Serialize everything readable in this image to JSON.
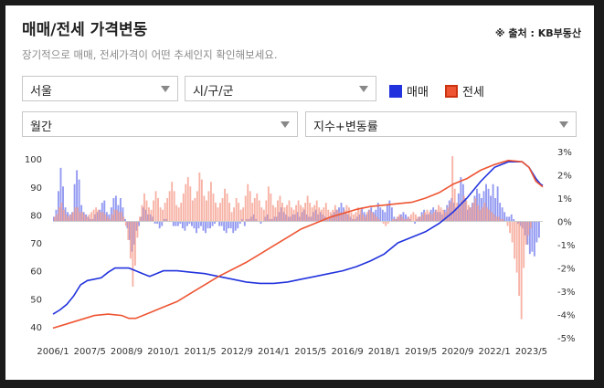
{
  "header": {
    "title": "매매/전세 가격변동",
    "source": "※ 출처 : KB부동산",
    "subtitle": "장기적으로 매매, 전세가격이 어떤 추세인지 확인해보세요."
  },
  "filters": {
    "region": "서울",
    "district": "시/구/군",
    "period": "월간",
    "metric": "지수+변동률"
  },
  "legend": {
    "sale": "매매",
    "jeonse": "전세"
  },
  "colors": {
    "sale": "#2233dd",
    "jeonse": "#ee5533",
    "sale_bar": "#8088ee",
    "jeonse_bar": "#f5a090"
  },
  "chart_data": {
    "type": "line",
    "x_ticks": [
      "2006/1",
      "2007/5",
      "2008/9",
      "2010/1",
      "2011/5",
      "2012/9",
      "2014/1",
      "2015/5",
      "2016/9",
      "2018/1",
      "2019/5",
      "2020/9",
      "2022/1",
      "2023/5"
    ],
    "y_left": {
      "ticks": [
        "100",
        "90",
        "80",
        "70",
        "60",
        "50",
        "40"
      ],
      "range": [
        38,
        102
      ]
    },
    "y_right": {
      "ticks": [
        "3%",
        "2%",
        "1%",
        "0%",
        "-1%",
        "-2%",
        "-3%",
        "-4%",
        "-5%"
      ],
      "range": [
        -5,
        3
      ]
    },
    "start_year": 2006,
    "start_month": 1,
    "series": [
      {
        "name": "매매",
        "axis": "left",
        "kind": "line",
        "points": [
          [
            0,
            44.5
          ],
          [
            3,
            46
          ],
          [
            6,
            48
          ],
          [
            9,
            51
          ],
          [
            12,
            55
          ],
          [
            15,
            56.5
          ],
          [
            18,
            57
          ],
          [
            21,
            57.5
          ],
          [
            24,
            59.5
          ],
          [
            27,
            61
          ],
          [
            30,
            61
          ],
          [
            33,
            61
          ],
          [
            36,
            60
          ],
          [
            39,
            59
          ],
          [
            42,
            58
          ],
          [
            45,
            59
          ],
          [
            48,
            60
          ],
          [
            54,
            60
          ],
          [
            60,
            59.5
          ],
          [
            66,
            59
          ],
          [
            72,
            58
          ],
          [
            78,
            57
          ],
          [
            84,
            56
          ],
          [
            90,
            55.5
          ],
          [
            96,
            55.5
          ],
          [
            102,
            56
          ],
          [
            108,
            57
          ],
          [
            114,
            58
          ],
          [
            120,
            59
          ],
          [
            126,
            60
          ],
          [
            132,
            61.5
          ],
          [
            138,
            63.5
          ],
          [
            144,
            66
          ],
          [
            150,
            70
          ],
          [
            156,
            72
          ],
          [
            162,
            74
          ],
          [
            168,
            77
          ],
          [
            174,
            81
          ],
          [
            180,
            86
          ],
          [
            186,
            92
          ],
          [
            192,
            97
          ],
          [
            198,
            99
          ],
          [
            204,
            99
          ],
          [
            207,
            97
          ],
          [
            210,
            93
          ],
          [
            212,
            91
          ],
          [
            213,
            90.5
          ]
        ]
      },
      {
        "name": "전세",
        "axis": "left",
        "kind": "line",
        "points": [
          [
            0,
            39.5
          ],
          [
            6,
            41
          ],
          [
            12,
            42.5
          ],
          [
            18,
            44
          ],
          [
            24,
            44.5
          ],
          [
            30,
            44
          ],
          [
            33,
            43
          ],
          [
            36,
            43
          ],
          [
            42,
            45
          ],
          [
            48,
            47
          ],
          [
            54,
            49
          ],
          [
            60,
            52
          ],
          [
            66,
            55
          ],
          [
            72,
            58
          ],
          [
            78,
            60.5
          ],
          [
            84,
            63
          ],
          [
            90,
            66
          ],
          [
            96,
            69
          ],
          [
            102,
            72
          ],
          [
            108,
            75
          ],
          [
            114,
            77
          ],
          [
            120,
            79
          ],
          [
            126,
            80.5
          ],
          [
            132,
            82
          ],
          [
            138,
            83
          ],
          [
            144,
            83.5
          ],
          [
            150,
            84
          ],
          [
            156,
            84.5
          ],
          [
            162,
            86
          ],
          [
            168,
            88
          ],
          [
            174,
            91
          ],
          [
            180,
            93
          ],
          [
            186,
            96
          ],
          [
            192,
            98
          ],
          [
            198,
            99.5
          ],
          [
            204,
            99
          ],
          [
            207,
            97
          ],
          [
            210,
            92
          ],
          [
            213,
            90
          ]
        ]
      },
      {
        "name": "매매",
        "axis": "right",
        "kind": "bar",
        "values": [
          0.2,
          0.5,
          1.3,
          2.3,
          1.5,
          0.6,
          0.4,
          0.3,
          0.4,
          1.6,
          2.2,
          1.8,
          0.7,
          0.4,
          0.3,
          0.2,
          0.1,
          0.1,
          0.3,
          0.4,
          0.5,
          0.8,
          0.9,
          0.4,
          0.3,
          0.6,
          1.0,
          1.1,
          0.7,
          1.0,
          0.6,
          0.1,
          -0.3,
          -0.8,
          -1.3,
          -1.0,
          -0.4,
          -0.2,
          0.2,
          0.6,
          0.5,
          0.3,
          0.3,
          0.2,
          -0.1,
          -0.1,
          -0.3,
          -0.2,
          0.1,
          0.1,
          0.0,
          0.0,
          -0.2,
          -0.2,
          -0.2,
          -0.1,
          -0.3,
          -0.4,
          -0.2,
          -0.1,
          -0.2,
          -0.3,
          -0.5,
          -0.3,
          -0.2,
          -0.4,
          -0.5,
          -0.3,
          -0.3,
          -0.2,
          -0.1,
          0.0,
          -0.2,
          -0.2,
          -0.4,
          -0.5,
          -0.3,
          -0.3,
          -0.5,
          -0.4,
          -0.3,
          -0.1,
          0.1,
          -0.2,
          0.1,
          0.1,
          0.2,
          0.3,
          0.1,
          0.0,
          -0.1,
          0.0,
          0.2,
          0.3,
          0.1,
          0.1,
          0.2,
          0.2,
          0.4,
          0.6,
          0.4,
          0.3,
          0.2,
          0.2,
          0.3,
          0.3,
          0.4,
          0.2,
          0.4,
          0.5,
          0.3,
          0.2,
          0.2,
          0.4,
          0.5,
          0.3,
          0.4,
          0.3,
          0.2,
          0.1,
          0.2,
          0.3,
          0.4,
          0.5,
          0.6,
          0.8,
          0.6,
          0.4,
          0.3,
          0.2,
          0.1,
          0.1,
          0.2,
          0.3,
          0.6,
          0.4,
          0.3,
          0.5,
          0.6,
          0.4,
          0.5,
          0.8,
          0.6,
          0.5,
          0.4,
          0.7,
          0.9,
          0.6,
          0.2,
          0.1,
          0.2,
          0.3,
          0.4,
          0.3,
          0.2,
          0.1,
          0.0,
          -0.1,
          0.1,
          0.2,
          0.4,
          0.5,
          0.3,
          0.3,
          0.5,
          0.6,
          0.5,
          0.4,
          0.4,
          0.3,
          0.5,
          0.7,
          0.9,
          1.0,
          0.8,
          0.6,
          1.2,
          1.9,
          1.6,
          1.0,
          0.5,
          0.6,
          0.8,
          1.1,
          1.4,
          1.2,
          1.0,
          1.3,
          1.6,
          1.4,
          1.1,
          1.6,
          1.0,
          1.5,
          0.8,
          0.6,
          0.4,
          0.2,
          0.2,
          0.3,
          0.1,
          0.0,
          -0.1,
          -0.2,
          -0.3,
          -0.6,
          -1.0,
          -1.4,
          -1.3,
          -1.5,
          -0.9,
          -0.7
        ]
      },
      {
        "name": "전세",
        "axis": "right",
        "kind": "bar",
        "values": [
          0.2,
          0.3,
          0.6,
          0.8,
          0.5,
          0.3,
          0.2,
          0.3,
          0.4,
          0.6,
          0.6,
          0.4,
          0.4,
          0.3,
          0.2,
          0.3,
          0.4,
          0.5,
          0.6,
          0.5,
          0.4,
          0.4,
          0.3,
          0.2,
          0.1,
          0.3,
          0.5,
          0.5,
          0.4,
          0.4,
          0.2,
          -0.2,
          -0.8,
          -1.6,
          -2.8,
          -1.9,
          -0.7,
          0.2,
          0.7,
          1.2,
          0.9,
          0.6,
          0.5,
          0.9,
          1.3,
          1.0,
          0.6,
          0.5,
          0.8,
          1.0,
          1.3,
          1.7,
          1.3,
          0.7,
          0.6,
          0.8,
          1.2,
          1.6,
          1.9,
          1.5,
          0.9,
          1.0,
          1.3,
          2.1,
          1.8,
          1.1,
          0.9,
          1.3,
          1.7,
          1.2,
          0.8,
          0.6,
          0.8,
          1.0,
          1.4,
          1.2,
          0.8,
          0.4,
          0.6,
          1.0,
          0.8,
          0.5,
          0.6,
          1.1,
          1.6,
          1.3,
          0.8,
          1.0,
          1.2,
          0.9,
          0.6,
          0.5,
          0.9,
          1.5,
          1.2,
          0.7,
          0.6,
          0.9,
          1.1,
          0.8,
          0.6,
          0.7,
          0.9,
          0.6,
          0.5,
          0.7,
          0.9,
          0.7,
          0.6,
          0.8,
          1.1,
          0.8,
          0.6,
          0.7,
          0.9,
          0.6,
          0.5,
          0.6,
          0.8,
          0.5,
          0.4,
          0.5,
          0.7,
          0.5,
          0.4,
          0.3,
          0.5,
          0.7,
          0.6,
          0.4,
          0.3,
          0.4,
          0.6,
          0.5,
          0.3,
          0.2,
          0.4,
          0.5,
          0.4,
          0.3,
          0.2,
          0.1,
          0.0,
          -0.1,
          -0.2,
          -0.1,
          0.0,
          0.1,
          0.1,
          0.2,
          0.3,
          0.2,
          0.1,
          0.1,
          0.2,
          0.3,
          0.4,
          0.3,
          0.2,
          0.2,
          0.3,
          0.4,
          0.5,
          0.4,
          0.3,
          0.4,
          0.5,
          0.7,
          0.6,
          0.5,
          0.4,
          0.6,
          0.8,
          2.8,
          1.4,
          0.8,
          0.6,
          0.9,
          1.1,
          0.9,
          0.7,
          0.6,
          0.8,
          1.0,
          0.7,
          0.5,
          0.6,
          0.8,
          0.6,
          0.5,
          0.4,
          0.3,
          0.2,
          0.2,
          0.1,
          0.1,
          0.0,
          -0.2,
          -0.5,
          -0.9,
          -1.6,
          -2.2,
          -3.2,
          -4.2,
          -2.0,
          -1.0,
          -0.6,
          -0.3
        ]
      }
    ],
    "grid": false,
    "legend_position": "top-right"
  }
}
